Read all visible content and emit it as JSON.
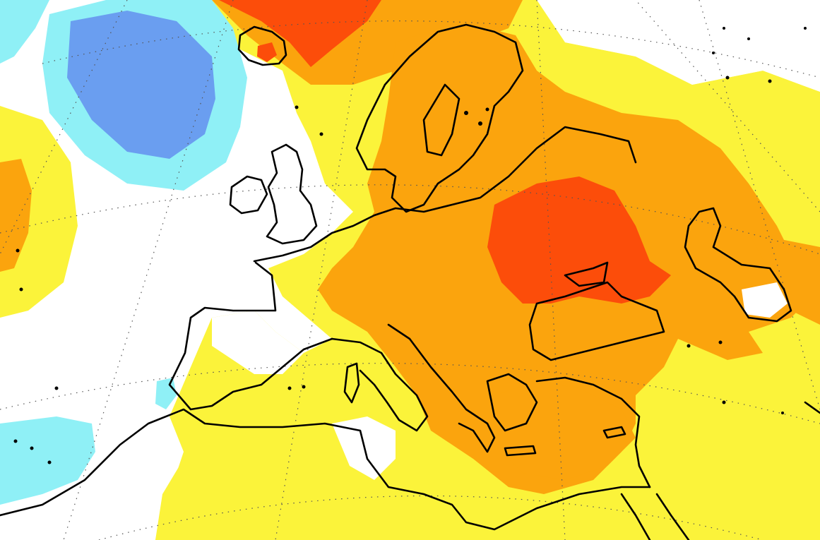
{
  "map": {
    "kind": "temperature-anomaly",
    "region": "Europe",
    "projection": "polar-stereographic",
    "graticule": true,
    "legend_shown": false,
    "colors": {
      "background": "#ffffff",
      "strong_cold": "#6a9ef0",
      "cold": "#8ff0f6",
      "neutral": "#ffffff",
      "slight_warm": "#fbf33a",
      "warm": "#fba40d",
      "strong_warm": "#fc4d0a",
      "coastline": "#000000"
    }
  }
}
